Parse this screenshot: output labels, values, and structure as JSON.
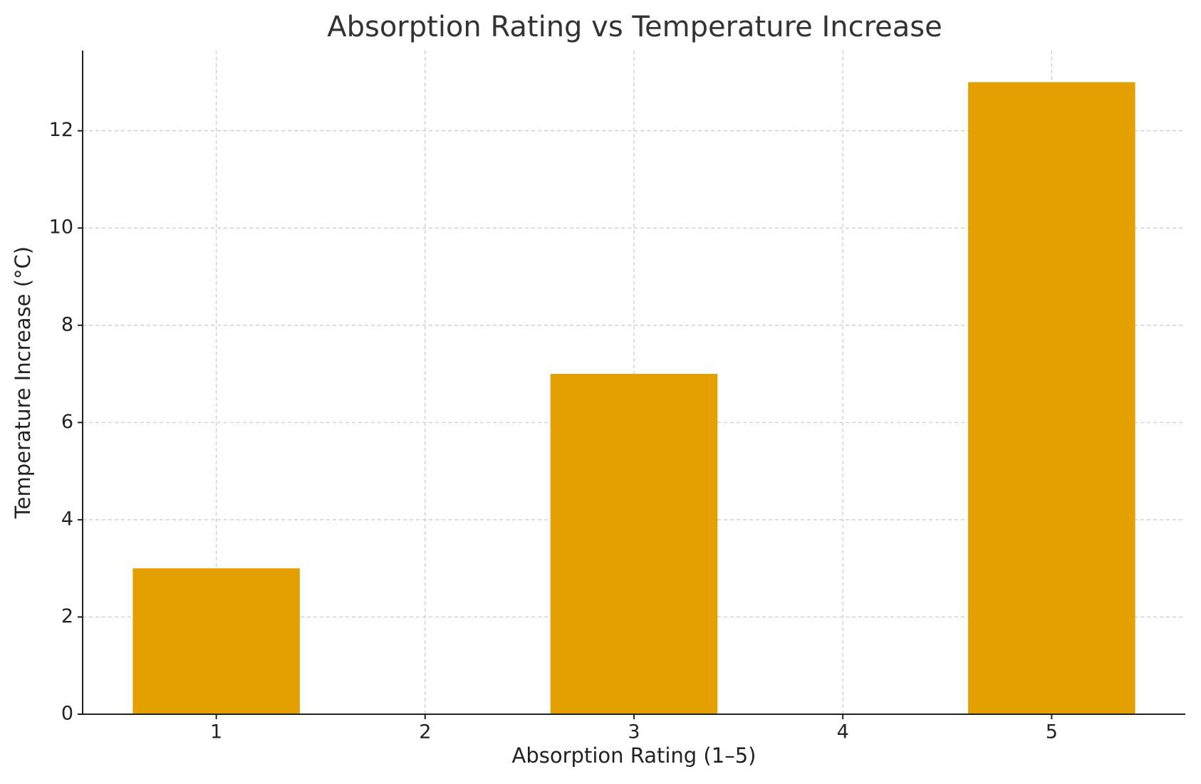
{
  "chart_data": {
    "type": "bar",
    "title": "Absorption Rating vs Temperature Increase",
    "x_label": "Absorption Rating (1–5)",
    "y_label": "Temperature Increase (°C)",
    "x": [
      1,
      3,
      5
    ],
    "values": [
      3,
      7,
      13
    ],
    "color": "#e4a000",
    "xlim": [
      0.36,
      5.64
    ],
    "xticks": [
      1,
      2,
      3,
      4,
      5
    ],
    "ylim": [
      0,
      13.65
    ],
    "yticks": [
      0,
      2,
      4,
      6,
      8,
      10,
      12
    ],
    "grid": true
  }
}
